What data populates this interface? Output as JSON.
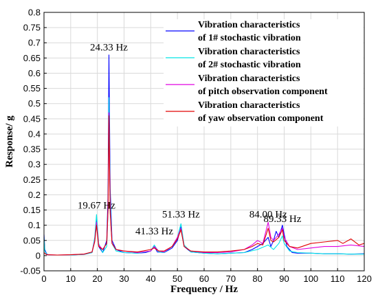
{
  "chart_data": {
    "type": "line",
    "xlabel": "Frequency / Hz",
    "ylabel": "Response/ g",
    "xlim": [
      0,
      120
    ],
    "ylim": [
      -0.05,
      0.8
    ],
    "xticks": [
      0,
      10,
      20,
      30,
      40,
      50,
      60,
      70,
      80,
      90,
      100,
      110,
      120
    ],
    "yticks": [
      -0.05,
      0,
      0.05,
      0.1,
      0.15,
      0.2,
      0.25,
      0.3,
      0.35,
      0.4,
      0.45,
      0.5,
      0.55,
      0.6,
      0.65,
      0.7,
      0.75,
      0.8
    ],
    "ytick_labels": [
      "-0.05",
      "0",
      "0.05",
      "0.1",
      "0.15",
      "0.2",
      "0.25",
      "0.3",
      "0.35",
      "0.4",
      "0.45",
      "0.5",
      "0.55",
      "0.6",
      "0.65",
      "0.7",
      "0.75",
      "0.8"
    ],
    "grid": true,
    "legend_position": "top-right",
    "annotations": [
      {
        "text": "24.33 Hz",
        "x": 24.33,
        "y": 0.675
      },
      {
        "text": "19.67 Hz",
        "x": 19.67,
        "y": 0.155
      },
      {
        "text": "41.33 Hz",
        "x": 41.33,
        "y": 0.07
      },
      {
        "text": "51.33 Hz",
        "x": 51.33,
        "y": 0.125
      },
      {
        "text": "84.00 Hz",
        "x": 84.0,
        "y": 0.125
      },
      {
        "text": "89.33 Hz",
        "x": 89.33,
        "y": 0.11
      }
    ],
    "series": [
      {
        "legend": [
          "Vibration characteristics",
          "of 1# stochastic vibration"
        ],
        "color": "#0000ff",
        "x": [
          0,
          0.3,
          1,
          2,
          5,
          10,
          15,
          18,
          19,
          19.67,
          20.5,
          22,
          23.5,
          24,
          24.33,
          24.8,
          25.5,
          27,
          30,
          35,
          38,
          40,
          41.33,
          42.5,
          45,
          48,
          50,
          51.33,
          52.5,
          55,
          60,
          65,
          70,
          75,
          78,
          80,
          82,
          84,
          85,
          86,
          87,
          88,
          89.33,
          90,
          91,
          93,
          95,
          100,
          105,
          110,
          115,
          120
        ],
        "y": [
          0.07,
          0.02,
          0.005,
          0.002,
          0.002,
          0.002,
          0.004,
          0.01,
          0.05,
          0.12,
          0.03,
          0.01,
          0.05,
          0.2,
          0.66,
          0.22,
          0.05,
          0.02,
          0.01,
          0.008,
          0.01,
          0.015,
          0.03,
          0.012,
          0.01,
          0.025,
          0.05,
          0.095,
          0.03,
          0.012,
          0.008,
          0.006,
          0.008,
          0.01,
          0.02,
          0.03,
          0.04,
          0.06,
          0.03,
          0.05,
          0.08,
          0.06,
          0.1,
          0.07,
          0.03,
          0.01,
          0.008,
          0.008,
          0.006,
          0.006,
          0.005,
          0.006
        ]
      },
      {
        "legend": [
          "Vibration characteristics",
          "of 2# stochastic vibration"
        ],
        "color": "#00e5e5",
        "x": [
          0,
          0.3,
          1,
          2,
          5,
          10,
          15,
          18,
          19,
          19.67,
          20.5,
          22,
          23.5,
          24,
          24.33,
          24.8,
          25.5,
          27,
          30,
          35,
          40,
          41.33,
          43,
          45,
          48,
          50,
          51.33,
          52.5,
          55,
          60,
          65,
          70,
          75,
          80,
          84,
          86,
          88,
          89.33,
          90,
          92,
          95,
          100,
          105,
          110,
          115,
          120
        ],
        "y": [
          0.06,
          0.015,
          0.004,
          0.002,
          0.002,
          0.002,
          0.004,
          0.01,
          0.06,
          0.135,
          0.04,
          0.01,
          0.03,
          0.15,
          0.52,
          0.18,
          0.04,
          0.015,
          0.01,
          0.008,
          0.015,
          0.035,
          0.012,
          0.01,
          0.03,
          0.06,
          0.105,
          0.035,
          0.012,
          0.008,
          0.006,
          0.008,
          0.01,
          0.02,
          0.035,
          0.02,
          0.04,
          0.065,
          0.04,
          0.015,
          0.01,
          0.008,
          0.006,
          0.006,
          0.005,
          0.005
        ]
      },
      {
        "legend": [
          "Vibration characteristics",
          "of pitch observation component"
        ],
        "color": "#e000e0",
        "x": [
          0,
          1,
          5,
          10,
          15,
          18,
          19,
          19.67,
          20.5,
          22,
          23.5,
          24,
          24.33,
          24.8,
          25.5,
          27,
          30,
          35,
          40,
          41.33,
          43,
          45,
          48,
          50,
          51.33,
          52.5,
          55,
          60,
          65,
          70,
          75,
          78,
          80,
          82,
          84,
          85,
          86,
          88,
          89.33,
          90,
          92,
          95,
          100,
          105,
          110,
          115,
          120
        ],
        "y": [
          0.01,
          0.003,
          0.002,
          0.003,
          0.005,
          0.012,
          0.05,
          0.11,
          0.035,
          0.02,
          0.04,
          0.16,
          0.47,
          0.15,
          0.04,
          0.02,
          0.015,
          0.01,
          0.015,
          0.03,
          0.015,
          0.012,
          0.03,
          0.06,
          0.09,
          0.03,
          0.015,
          0.01,
          0.01,
          0.012,
          0.02,
          0.035,
          0.05,
          0.04,
          0.11,
          0.06,
          0.05,
          0.07,
          0.09,
          0.06,
          0.03,
          0.02,
          0.025,
          0.03,
          0.03,
          0.035,
          0.03
        ]
      },
      {
        "legend": [
          "Vibration characteristics",
          "of yaw observation component"
        ],
        "color": "#e00000",
        "x": [
          0,
          1,
          5,
          10,
          15,
          18,
          19,
          19.67,
          20.5,
          22,
          23.5,
          24,
          24.33,
          24.8,
          25.5,
          27,
          30,
          35,
          40,
          41.33,
          43,
          45,
          48,
          50,
          51.33,
          52.5,
          55,
          60,
          65,
          70,
          75,
          78,
          80,
          82,
          84,
          85,
          86,
          88,
          89.33,
          90,
          92,
          95,
          100,
          105,
          110,
          112,
          115,
          118,
          120
        ],
        "y": [
          0.01,
          0.003,
          0.002,
          0.003,
          0.005,
          0.012,
          0.045,
          0.1,
          0.03,
          0.02,
          0.04,
          0.15,
          0.46,
          0.14,
          0.04,
          0.02,
          0.015,
          0.012,
          0.02,
          0.025,
          0.015,
          0.015,
          0.03,
          0.055,
          0.085,
          0.03,
          0.015,
          0.012,
          0.012,
          0.015,
          0.02,
          0.03,
          0.04,
          0.035,
          0.09,
          0.05,
          0.045,
          0.06,
          0.085,
          0.05,
          0.03,
          0.025,
          0.04,
          0.045,
          0.05,
          0.04,
          0.055,
          0.035,
          0.04
        ]
      }
    ]
  }
}
